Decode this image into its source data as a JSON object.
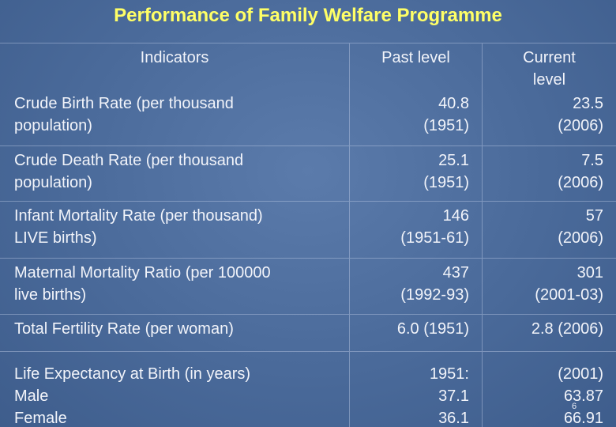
{
  "title": "Performance of Family Welfare Programme",
  "table": {
    "header": [
      "Indicators",
      "Past level",
      "Current\nlevel"
    ],
    "rows": [
      [
        "Crude Birth Rate (per thousand\npopulation)",
        "40.8\n(1951)",
        "23.5\n(2006)"
      ],
      [
        "Crude Death Rate (per thousand\npopulation)",
        "25.1\n(1951)",
        "7.5\n(2006)"
      ],
      [
        "Infant Mortality Rate (per thousand)\nLIVE births)",
        "146\n(1951-61)",
        "57\n(2006)"
      ],
      [
        "Maternal Mortality Ratio (per 100000\nlive births)",
        "437\n(1992-93)",
        "301\n(2001-03)"
      ],
      [
        "Total Fertility Rate (per woman)",
        "6.0 (1951)",
        "2.8 (2006)"
      ],
      [
        "Life Expectancy at Birth (in years)\nMale\nFemale",
        "1951:\n37.1\n36.1",
        "(2001)\n63.87\n66.91"
      ]
    ]
  },
  "page_number": "6"
}
